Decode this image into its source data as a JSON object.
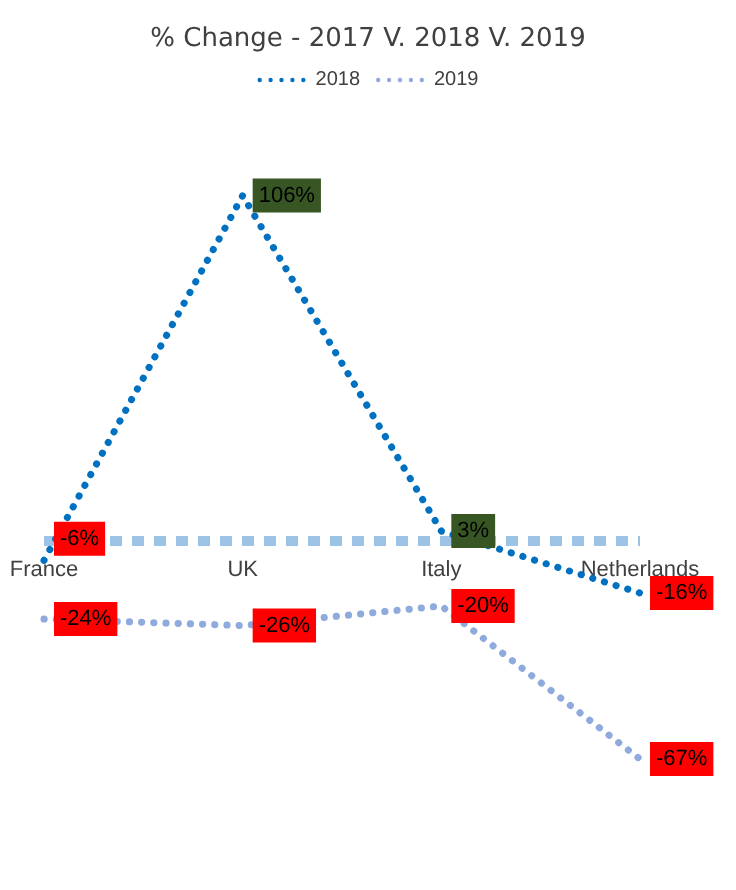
{
  "chart_data": {
    "type": "line",
    "title": "% Change - 2017 V. 2018 V. 2019",
    "categories": [
      "France",
      "UK",
      "Italy",
      "Netherlands"
    ],
    "series": [
      {
        "name": "2018",
        "color": "#0070c0",
        "values": [
          -6,
          106,
          3,
          -16
        ],
        "value_labels": [
          "-6%",
          "106%",
          "3%",
          "-16%"
        ]
      },
      {
        "name": "2019",
        "color": "#8faadc",
        "values": [
          -24,
          -26,
          -20,
          -67
        ],
        "value_labels": [
          "-24%",
          "-26%",
          "-20%",
          "-67%"
        ]
      }
    ],
    "legend": "top",
    "grid": false,
    "marker": "none",
    "line_style": "dotted",
    "ref_lines": [
      {
        "axis": "y",
        "value": 0,
        "color": "#9dc3e6",
        "line_style": "dashed"
      }
    ]
  }
}
